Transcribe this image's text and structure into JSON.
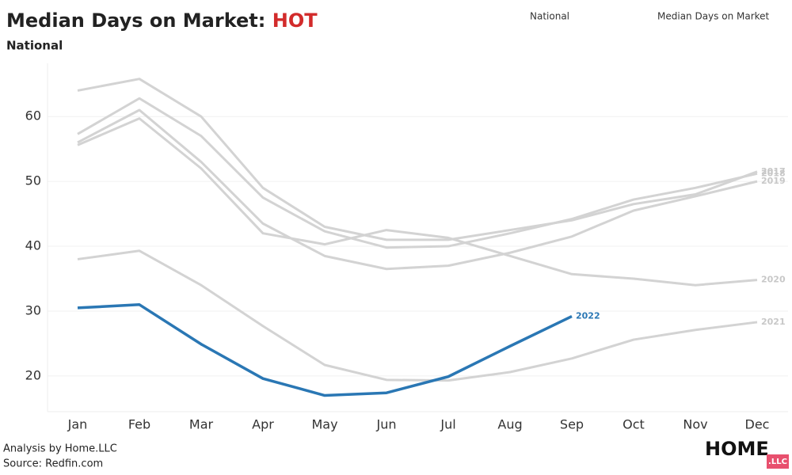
{
  "chart_data": {
    "type": "line",
    "title": "Median Days on Market:",
    "title_highlight": "HOT",
    "subtitle": "National",
    "filters": [
      "National",
      "Median Days on Market"
    ],
    "footer": [
      "Analysis by Home.LLC",
      "Source: Redfin.com"
    ],
    "logo": {
      "main": "HOME",
      "badge": ".LLC"
    },
    "categories": [
      "Jan",
      "Feb",
      "Mar",
      "Apr",
      "May",
      "Jun",
      "Jul",
      "Aug",
      "Sep",
      "Oct",
      "Nov",
      "Dec"
    ],
    "ylim": [
      14.5,
      68.2
    ],
    "yticks": [
      20,
      30,
      40,
      50,
      60
    ],
    "grid": true,
    "series": [
      {
        "name": "2017",
        "color": "#d3d3d3",
        "values": [
          64,
          65.8,
          60,
          49,
          43,
          41,
          41,
          42.5,
          44,
          46.5,
          48,
          51.5
        ]
      },
      {
        "name": "2018",
        "color": "#d3d3d3",
        "values": [
          57.3,
          62.8,
          57,
          47.5,
          42.3,
          39.8,
          40,
          42,
          44.2,
          47.2,
          49,
          51.2
        ]
      },
      {
        "name": "2019",
        "color": "#d3d3d3",
        "values": [
          56,
          61,
          53,
          43.5,
          38.5,
          36.5,
          37,
          39,
          41.5,
          45.5,
          47.7,
          50
        ]
      },
      {
        "name": "2020",
        "color": "#d3d3d3",
        "values": [
          55.6,
          59.7,
          52,
          42,
          40.3,
          42.5,
          41.3,
          38.5,
          35.7,
          35,
          34,
          34.8
        ]
      },
      {
        "name": "2021",
        "color": "#d3d3d3",
        "values": [
          38,
          39.3,
          34,
          27.7,
          21.7,
          19.4,
          19.3,
          20.6,
          22.7,
          25.6,
          27.1,
          28.3
        ]
      },
      {
        "name": "2022",
        "color": "#2a77b4",
        "values": [
          30.5,
          31,
          24.9,
          19.6,
          17,
          17.4,
          19.9,
          24.6,
          29.2,
          null,
          null,
          null
        ]
      }
    ]
  }
}
